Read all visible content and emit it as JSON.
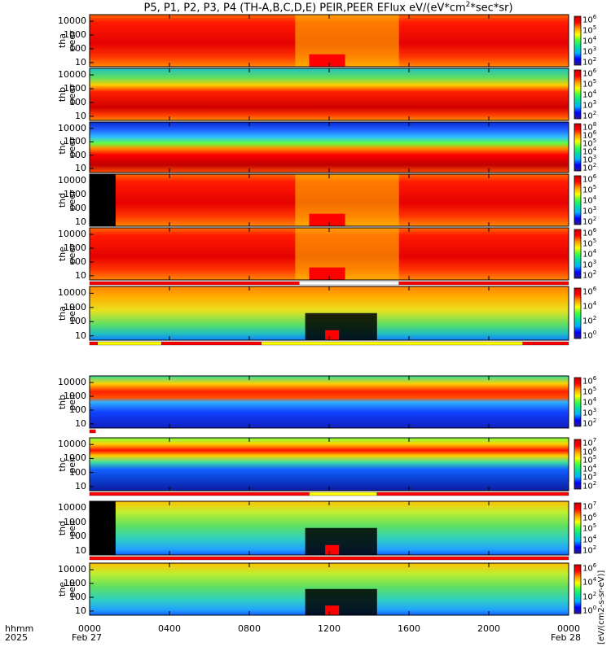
{
  "chart_data": {
    "type": "heatmap",
    "title": "P5, P1, P2, P3, P4 (TH-A,B,C,D,E) PEIR,PEER EFlux eV/(eV*cm",
    "title_sup": "2",
    "title_end": "*sec*sr)",
    "x_axis": {
      "label_line1": "hhmm",
      "label_line2": "2025",
      "ticks": [
        "0000",
        "0400",
        "0800",
        "1200",
        "1600",
        "2000",
        "0000"
      ],
      "tick_hours": [
        0,
        4,
        8,
        12,
        16,
        20,
        24
      ],
      "sublabels": [
        "Feb 27",
        "Feb 28"
      ],
      "range_hours": [
        0,
        24
      ]
    },
    "y_axis": {
      "scale": "log",
      "range_eV": [
        5,
        30000
      ],
      "tick_values": [
        10,
        100,
        1000,
        10000
      ],
      "tick_labels": [
        "10",
        "100",
        "1000",
        "10000"
      ]
    },
    "colorbar": {
      "scale": "log",
      "colors": [
        "#2b1a8f",
        "#0000ff",
        "#00b4ff",
        "#00e0a0",
        "#40ff40",
        "#ffff00",
        "#ff9900",
        "#ff0000",
        "#c80000"
      ],
      "unit_label": "[eV/(cm2-s-sr-eV)]"
    },
    "panels": [
      {
        "id": "tha-peer",
        "line1": "tha",
        "line2": "peer",
        "cb_ticks": [
          "10",
          "10",
          "10",
          "10",
          "10"
        ],
        "cb_exp": [
          "6",
          "5",
          "4",
          "3",
          "2"
        ],
        "flags": []
      },
      {
        "id": "thb-peer",
        "line1": "thb",
        "line2": "peer",
        "cb_ticks": [
          "10",
          "10",
          "10",
          "10",
          "10"
        ],
        "cb_exp": [
          "6",
          "5",
          "4",
          "3",
          "2"
        ],
        "flags": []
      },
      {
        "id": "thc-peer",
        "line1": "thc",
        "line2": "peer",
        "cb_ticks": [
          "10",
          "10",
          "10",
          "10",
          "10",
          "10"
        ],
        "cb_exp": [
          "8",
          "6",
          "5",
          "4",
          "3",
          "2"
        ],
        "flags": []
      },
      {
        "id": "thd-peer",
        "line1": "thd",
        "line2": "peer",
        "cb_ticks": [
          "10",
          "10",
          "10",
          "10",
          "10"
        ],
        "cb_exp": [
          "6",
          "5",
          "4",
          "3",
          "2"
        ],
        "flags": []
      },
      {
        "id": "the-peer",
        "line1": "the",
        "line2": "peer",
        "cb_ticks": [
          "10",
          "10",
          "10",
          "10",
          "10"
        ],
        "cb_exp": [
          "6",
          "5",
          "4",
          "3",
          "2"
        ],
        "flags": [
          [
            0,
            10.5,
            "red"
          ],
          [
            10.5,
            15.5,
            "white"
          ],
          [
            15.5,
            24,
            "red"
          ]
        ]
      },
      {
        "id": "tha-peir",
        "line1": "tha",
        "line2": "peir",
        "cb_ticks": [
          "10",
          "10",
          "10",
          "10"
        ],
        "cb_exp": [
          "6",
          "4",
          "2",
          "0"
        ],
        "flags": [
          [
            0,
            0.4,
            "red"
          ],
          [
            0.4,
            3.6,
            "yellow"
          ],
          [
            3.6,
            8.6,
            "red"
          ],
          [
            8.6,
            21.7,
            "yellow"
          ],
          [
            21.7,
            24,
            "red"
          ]
        ]
      },
      {
        "id": "thb-peir",
        "line1": "thb",
        "line2": "peir",
        "cb_ticks": [
          "10",
          "10",
          "10",
          "10",
          "10"
        ],
        "cb_exp": [
          "6",
          "5",
          "4",
          "3",
          "2"
        ],
        "flags": [
          [
            0,
            0.3,
            "red"
          ]
        ]
      },
      {
        "id": "thc-peir",
        "line1": "thc",
        "line2": "peir",
        "cb_ticks": [
          "10",
          "10",
          "10",
          "10",
          "10",
          "10"
        ],
        "cb_exp": [
          "7",
          "6",
          "5",
          "4",
          "3",
          "2"
        ],
        "flags": [
          [
            0,
            11.0,
            "red"
          ],
          [
            11.0,
            14.4,
            "yellow"
          ],
          [
            14.4,
            24,
            "red"
          ]
        ]
      },
      {
        "id": "thd-peir",
        "line1": "thd",
        "line2": "peir",
        "cb_ticks": [
          "10",
          "10",
          "10",
          "10",
          "10"
        ],
        "cb_exp": [
          "7",
          "6",
          "5",
          "4",
          "2"
        ],
        "flags": [
          [
            0,
            24,
            "red"
          ]
        ]
      },
      {
        "id": "the-peir",
        "line1": "the",
        "line2": "peir",
        "cb_ticks": [
          "10",
          "10",
          "10",
          "10"
        ],
        "cb_exp": [
          "6",
          "4",
          "2",
          "0"
        ],
        "flags": []
      }
    ]
  }
}
